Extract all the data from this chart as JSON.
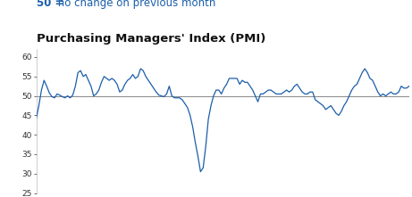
{
  "title": "Purchasing Managers' Index (PMI)",
  "subtitle_left": "50 = ",
  "subtitle_right": " no change on previous month",
  "subtitle_color": "#1B5EAB",
  "line_color": "#1B5EAB",
  "reference_line_value": 50,
  "reference_line_color": "#888888",
  "ylim": [
    25,
    62
  ],
  "yticks": [
    25,
    30,
    35,
    40,
    45,
    50,
    55,
    60
  ],
  "background_color": "#ffffff",
  "title_fontsize": 9.5,
  "subtitle_fontsize": 8.5,
  "pmi_values": [
    44.2,
    47.5,
    51.5,
    54.0,
    52.5,
    50.8,
    49.8,
    49.5,
    50.5,
    50.2,
    49.8,
    49.5,
    50.0,
    49.5,
    50.2,
    52.5,
    56.0,
    56.5,
    55.0,
    55.5,
    54.0,
    52.5,
    50.0,
    50.5,
    51.5,
    53.5,
    55.0,
    54.5,
    54.0,
    54.5,
    54.0,
    53.0,
    51.0,
    51.5,
    53.0,
    54.0,
    54.5,
    55.5,
    54.5,
    55.0,
    57.0,
    56.5,
    55.0,
    54.0,
    53.0,
    52.0,
    51.0,
    50.2,
    50.0,
    49.8,
    50.5,
    52.5,
    50.0,
    49.5,
    49.5,
    49.5,
    49.0,
    48.0,
    47.0,
    45.0,
    42.0,
    38.0,
    34.5,
    30.5,
    31.5,
    37.0,
    44.0,
    47.5,
    50.0,
    51.5,
    51.5,
    50.5,
    52.0,
    53.0,
    54.5,
    54.5,
    54.5,
    54.5,
    53.0,
    54.0,
    53.5,
    53.5,
    52.5,
    51.5,
    50.0,
    48.5,
    50.5,
    50.5,
    51.0,
    51.5,
    51.5,
    51.0,
    50.5,
    50.5,
    50.5,
    51.0,
    51.5,
    51.0,
    51.5,
    52.5,
    53.0,
    52.0,
    51.0,
    50.5,
    50.5,
    51.0,
    51.0,
    49.0,
    48.5,
    48.0,
    47.5,
    46.5,
    47.0,
    47.5,
    46.5,
    45.5,
    45.0,
    46.0,
    47.5,
    48.5,
    50.0,
    51.5,
    52.5,
    53.0,
    54.5,
    56.0,
    57.0,
    56.0,
    54.5,
    54.0,
    52.5,
    51.0,
    50.0,
    50.5,
    50.0,
    50.5,
    51.0,
    50.5,
    50.5,
    51.0,
    52.5,
    52.0,
    52.0,
    52.5
  ]
}
